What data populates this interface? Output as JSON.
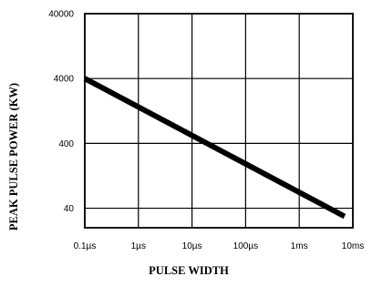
{
  "chart_data": {
    "type": "line",
    "xlabel": "PULSE WIDTH",
    "ylabel": "PEAK PULSE POWER (KW)",
    "x_scale": "log",
    "y_scale": "log",
    "x_ticks": [
      {
        "label": "0.1µs",
        "seconds": 1e-07
      },
      {
        "label": "1µs",
        "seconds": 1e-06
      },
      {
        "label": "10µs",
        "seconds": 1e-05
      },
      {
        "label": "100µs",
        "seconds": 0.0001
      },
      {
        "label": "1ms",
        "seconds": 0.001
      },
      {
        "label": "10ms",
        "seconds": 0.01
      }
    ],
    "y_ticks": [
      {
        "label": "40",
        "value": 40
      },
      {
        "label": "400",
        "value": 400
      },
      {
        "label": "4000",
        "value": 4000
      },
      {
        "label": "40000",
        "value": 40000
      }
    ],
    "xlim": [
      1e-07,
      0.01
    ],
    "ylim": [
      20,
      40000
    ],
    "grid": true,
    "series": [
      {
        "points": [
          {
            "x": 1e-07,
            "y": 4000
          },
          {
            "x": 0.007,
            "y": 30
          }
        ],
        "color": "#000000"
      }
    ]
  }
}
